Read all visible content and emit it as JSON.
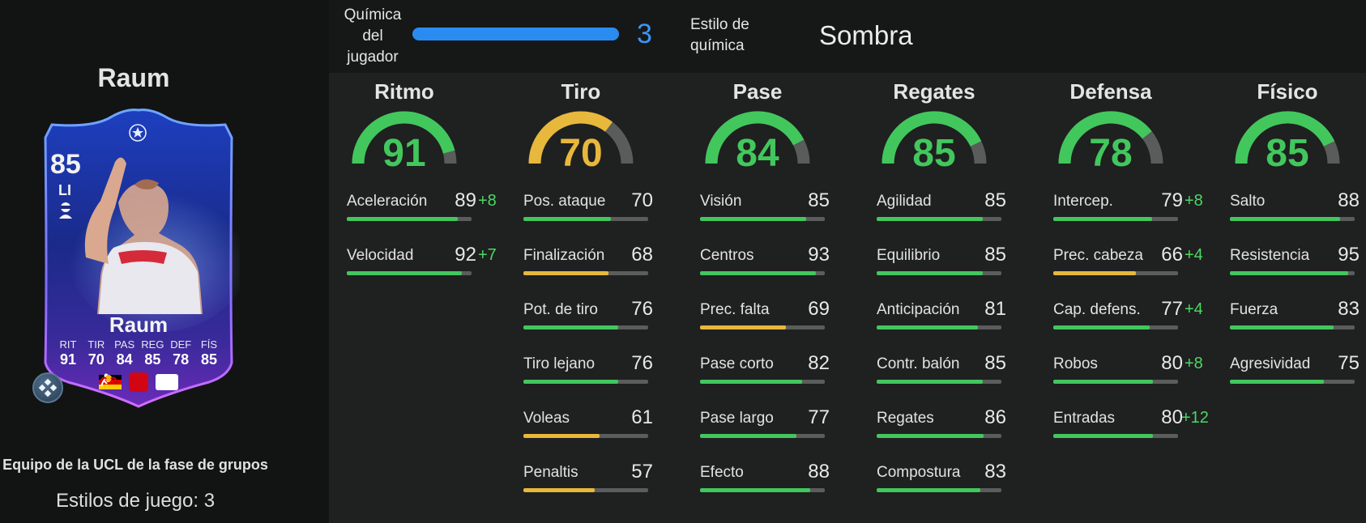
{
  "player": {
    "name": "Raum",
    "rating": "85",
    "position": "LI",
    "card_name": "Raum",
    "card_stats": [
      {
        "label": "RIT",
        "value": "91"
      },
      {
        "label": "TIR",
        "value": "70"
      },
      {
        "label": "PAS",
        "value": "84"
      },
      {
        "label": "REG",
        "value": "85"
      },
      {
        "label": "DEF",
        "value": "78"
      },
      {
        "label": "FÍS",
        "value": "85"
      }
    ],
    "subtitle": "Equipo de la UCL de la fase de grupos",
    "playstyles": "Estilos de juego: 3",
    "nation_flag": "germany-flag",
    "league_badge": "bundesliga-icon",
    "club_badge": "rb-leipzig-icon"
  },
  "chemistry": {
    "label": "Química del jugador",
    "value": "3",
    "fill": 1.0,
    "color": "#2a8cf0"
  },
  "chem_style": {
    "label": "Estilo de química",
    "value": "Sombra"
  },
  "colors": {
    "green": "#42c75d",
    "yellow": "#e7b83c",
    "blue": "#2a8cf0",
    "boost": "#4cd964"
  },
  "categories": [
    {
      "key": "ritmo",
      "name": "Ritmo",
      "value": "91",
      "tier": "green",
      "attributes": [
        {
          "name": "Aceleración",
          "value": "89",
          "boost": "+8"
        },
        {
          "name": "Velocidad",
          "value": "92",
          "boost": "+7"
        }
      ]
    },
    {
      "key": "tiro",
      "name": "Tiro",
      "value": "70",
      "tier": "yellow",
      "attributes": [
        {
          "name": "Pos. ataque",
          "value": "70",
          "boost": ""
        },
        {
          "name": "Finalización",
          "value": "68",
          "boost": ""
        },
        {
          "name": "Pot. de tiro",
          "value": "76",
          "boost": ""
        },
        {
          "name": "Tiro lejano",
          "value": "76",
          "boost": ""
        },
        {
          "name": "Voleas",
          "value": "61",
          "boost": ""
        },
        {
          "name": "Penaltis",
          "value": "57",
          "boost": ""
        }
      ]
    },
    {
      "key": "pase",
      "name": "Pase",
      "value": "84",
      "tier": "green",
      "attributes": [
        {
          "name": "Visión",
          "value": "85",
          "boost": ""
        },
        {
          "name": "Centros",
          "value": "93",
          "boost": ""
        },
        {
          "name": "Prec. falta",
          "value": "69",
          "boost": ""
        },
        {
          "name": "Pase corto",
          "value": "82",
          "boost": ""
        },
        {
          "name": "Pase largo",
          "value": "77",
          "boost": ""
        },
        {
          "name": "Efecto",
          "value": "88",
          "boost": ""
        }
      ]
    },
    {
      "key": "regates",
      "name": "Regates",
      "value": "85",
      "tier": "green",
      "attributes": [
        {
          "name": "Agilidad",
          "value": "85",
          "boost": ""
        },
        {
          "name": "Equilibrio",
          "value": "85",
          "boost": ""
        },
        {
          "name": "Anticipación",
          "value": "81",
          "boost": ""
        },
        {
          "name": "Contr. balón",
          "value": "85",
          "boost": ""
        },
        {
          "name": "Regates",
          "value": "86",
          "boost": ""
        },
        {
          "name": "Compostura",
          "value": "83",
          "boost": ""
        }
      ]
    },
    {
      "key": "defensa",
      "name": "Defensa",
      "value": "78",
      "tier": "green",
      "attributes": [
        {
          "name": "Intercep.",
          "value": "79",
          "boost": "+8"
        },
        {
          "name": "Prec. cabeza",
          "value": "66",
          "boost": "+4"
        },
        {
          "name": "Cap. defens.",
          "value": "77",
          "boost": "+4"
        },
        {
          "name": "Robos",
          "value": "80",
          "boost": "+8"
        },
        {
          "name": "Entradas",
          "value": "80",
          "boost": "+12"
        }
      ]
    },
    {
      "key": "fisico",
      "name": "Físico",
      "value": "85",
      "tier": "green",
      "attributes": [
        {
          "name": "Salto",
          "value": "88",
          "boost": ""
        },
        {
          "name": "Resistencia",
          "value": "95",
          "boost": ""
        },
        {
          "name": "Fuerza",
          "value": "83",
          "boost": ""
        },
        {
          "name": "Agresividad",
          "value": "75",
          "boost": ""
        }
      ]
    }
  ]
}
